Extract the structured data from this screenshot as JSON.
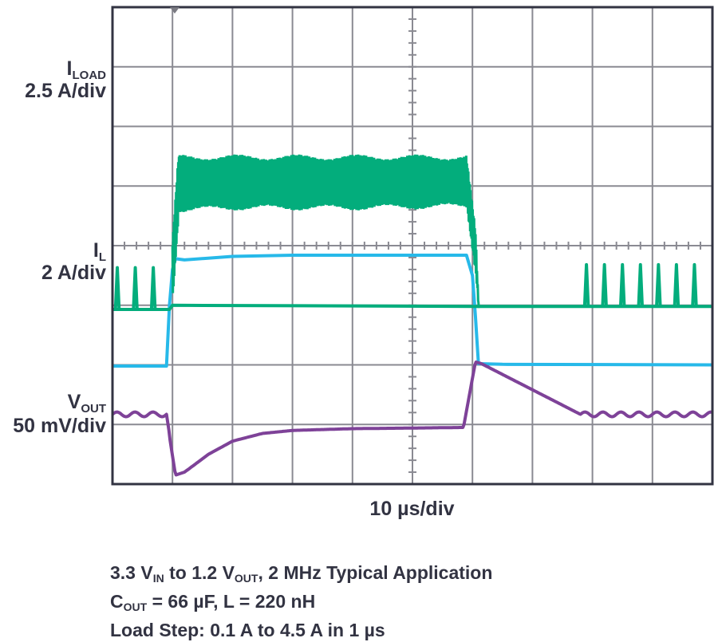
{
  "chart_data": {
    "type": "line",
    "kind": "oscilloscope capture",
    "grid": true,
    "divisions": {
      "x": 10,
      "y": 8
    },
    "time_scale": "10 µs/div",
    "series": [
      {
        "name": "I LOAD",
        "scale": "2.5 A/div",
        "color": "#27b9e9",
        "points": [
          [
            0.0,
            1.98
          ],
          [
            0.9,
            1.98
          ],
          [
            0.95,
            3.0
          ],
          [
            1.0,
            3.6
          ],
          [
            1.05,
            3.78
          ],
          [
            1.2,
            3.76
          ],
          [
            2.0,
            3.82
          ],
          [
            3.0,
            3.84
          ],
          [
            4.0,
            3.84
          ],
          [
            5.9,
            3.84
          ],
          [
            6.0,
            3.5
          ],
          [
            6.05,
            2.8
          ],
          [
            6.1,
            2.02
          ],
          [
            6.5,
            2.01
          ],
          [
            10.0,
            2.0
          ]
        ]
      },
      {
        "name": "I L",
        "scale": "2 A/div",
        "color": "#03ad7c",
        "upper_envelope": [
          [
            1.0,
            4.0
          ],
          [
            1.1,
            5.45
          ],
          [
            2.0,
            5.45
          ],
          [
            4.0,
            5.45
          ],
          [
            5.9,
            5.45
          ],
          [
            6.05,
            4.2
          ],
          [
            6.1,
            3.0
          ]
        ],
        "lower_envelope": [
          [
            1.0,
            3.2
          ],
          [
            1.1,
            4.63
          ],
          [
            2.0,
            4.67
          ],
          [
            4.0,
            4.67
          ],
          [
            5.9,
            4.7
          ],
          [
            6.05,
            3.6
          ],
          [
            6.1,
            3.0
          ]
        ],
        "baseline": [
          [
            0.0,
            2.93
          ],
          [
            0.95,
            2.93
          ],
          [
            1.0,
            3.0
          ],
          [
            6.1,
            2.98
          ],
          [
            10.0,
            2.98
          ]
        ],
        "pulses": [
          0.08,
          0.38,
          0.68,
          7.9,
          8.2,
          8.5,
          8.8,
          9.1,
          9.4,
          9.7
        ]
      },
      {
        "name": "V OUT",
        "scale": "50 mV/div",
        "color": "#7e4298",
        "points": [
          [
            0.0,
            1.17
          ],
          [
            0.9,
            1.17
          ],
          [
            0.95,
            0.8
          ],
          [
            1.05,
            0.15
          ],
          [
            1.2,
            0.2
          ],
          [
            1.6,
            0.5
          ],
          [
            2.0,
            0.72
          ],
          [
            2.5,
            0.85
          ],
          [
            3.0,
            0.9
          ],
          [
            4.0,
            0.93
          ],
          [
            5.0,
            0.94
          ],
          [
            5.85,
            0.95
          ],
          [
            5.95,
            1.5
          ],
          [
            6.05,
            2.05
          ],
          [
            6.15,
            2.02
          ],
          [
            7.8,
            1.17
          ],
          [
            10.0,
            1.17
          ]
        ],
        "ripple_regions": [
          [
            0.0,
            0.95
          ],
          [
            7.8,
            10.0
          ]
        ]
      }
    ]
  },
  "labels": {
    "iload_name": "I",
    "iload_sub": "LOAD",
    "iload_scale": "2.5 A/div",
    "il_name": "I",
    "il_sub": "L",
    "il_scale": "2 A/div",
    "vout_name": "V",
    "vout_sub": "OUT",
    "vout_scale": "50 mV/div",
    "xaxis": "10 µs/div"
  },
  "caption": {
    "line1_a": "3.3 V",
    "line1_sub1": "IN",
    "line1_b": " to 1.2 V",
    "line1_sub2": "OUT",
    "line1_c": ", 2 MHz Typical Application",
    "line2_a": "C",
    "line2_sub": "OUT",
    "line2_b": " = 66 µF, L = 220 nH",
    "line3": "Load Step: 0.1 A to 4.5 A in 1 µs"
  }
}
